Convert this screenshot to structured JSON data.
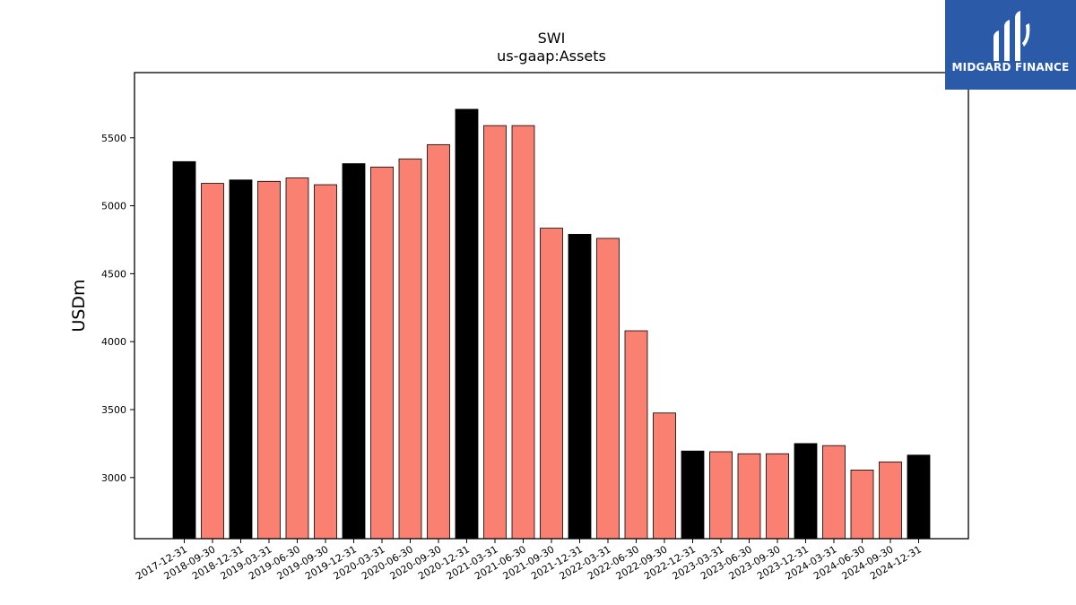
{
  "brand": {
    "name": "MIDGARD FINANCE",
    "background_color": "#2a5aa8",
    "icon": "midgard-logo-icon"
  },
  "chart_data": {
    "type": "bar",
    "title": "SWI",
    "subtitle": "us-gaap:Assets",
    "xlabel": "",
    "ylabel": "USDm",
    "ylim": [
      2550,
      5980
    ],
    "yticks": [
      3000,
      3500,
      4000,
      4500,
      5000,
      5500
    ],
    "grid": false,
    "colors": {
      "year_end": "#000000",
      "quarter": "#fa8072",
      "edge": "#000000"
    },
    "categories": [
      "2017-12-31",
      "2018-09-30",
      "2018-12-31",
      "2019-03-31",
      "2019-06-30",
      "2019-09-30",
      "2019-12-31",
      "2020-03-31",
      "2020-06-30",
      "2020-09-30",
      "2020-12-31",
      "2021-03-31",
      "2021-06-30",
      "2021-09-30",
      "2021-12-31",
      "2022-03-31",
      "2022-06-30",
      "2022-09-30",
      "2022-12-31",
      "2023-03-31",
      "2023-06-30",
      "2023-09-30",
      "2023-12-31",
      "2024-03-31",
      "2024-06-30",
      "2024-09-30",
      "2024-12-31"
    ],
    "values": [
      5325,
      5165,
      5190,
      5180,
      5205,
      5155,
      5310,
      5285,
      5345,
      5450,
      5710,
      5590,
      5590,
      4835,
      4790,
      4760,
      4080,
      3475,
      3195,
      3190,
      3175,
      3175,
      3250,
      3235,
      3055,
      3115,
      3165
    ],
    "period_type": [
      "year_end",
      "quarter",
      "year_end",
      "quarter",
      "quarter",
      "quarter",
      "year_end",
      "quarter",
      "quarter",
      "quarter",
      "year_end",
      "quarter",
      "quarter",
      "quarter",
      "year_end",
      "quarter",
      "quarter",
      "quarter",
      "year_end",
      "quarter",
      "quarter",
      "quarter",
      "year_end",
      "quarter",
      "quarter",
      "quarter",
      "year_end"
    ]
  }
}
